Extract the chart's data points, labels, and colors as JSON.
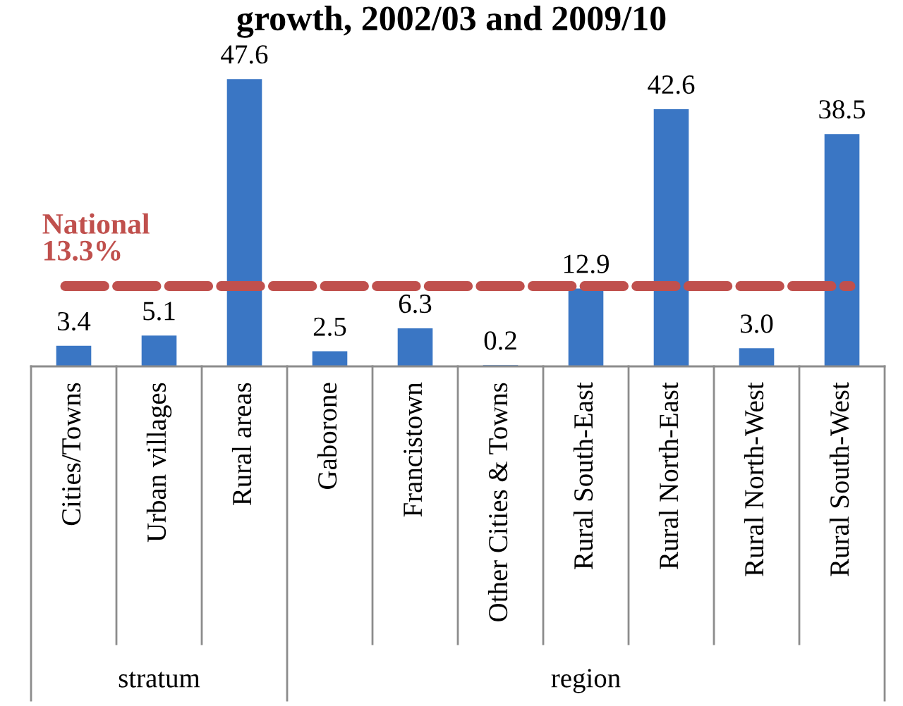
{
  "chart_data": {
    "type": "bar",
    "title": "growth, 2002/03 and 2009/10",
    "categories": [
      "Cities/Towns",
      "Urban villages",
      "Rural areas",
      "Gaborone",
      "Francistown",
      "Other Cities & Towns",
      "Rural South-East",
      "Rural North-East",
      "Rural North-West",
      "Rural South-West"
    ],
    "values": [
      3.4,
      5.1,
      47.6,
      2.5,
      6.3,
      0.2,
      12.9,
      42.6,
      3.0,
      38.5
    ],
    "value_labels": [
      "3.4",
      "5.1",
      "47.6",
      "2.5",
      "6.3",
      "0.2",
      "12.9",
      "42.6",
      "3.0",
      "38.5"
    ],
    "color": "#3a76c4",
    "ref_lines": [
      {
        "axis": "y",
        "value": 13.3,
        "label": "National\n13.3%",
        "color": "#c0504d",
        "line_style": "dashed"
      }
    ],
    "annotations": [
      "stratum",
      "region"
    ]
  }
}
